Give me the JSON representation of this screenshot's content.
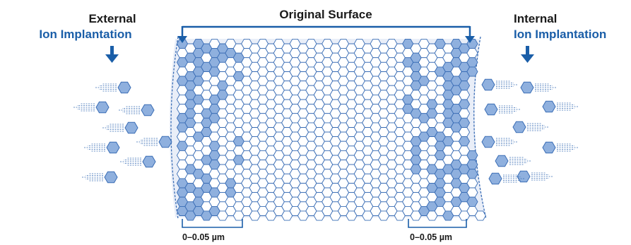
{
  "labels": {
    "top": "Original Surface",
    "left_line1": "External",
    "left_line2": "Ion Implantation",
    "right_line1": "Internal",
    "right_line2": "Ion Implantation",
    "depth_left": "0–0.05 µm",
    "depth_right": "0–0.05 µm"
  },
  "colors": {
    "accent_blue": "#1a5ea8",
    "ion_fill": "#8fb0de",
    "ion_stroke": "#3a6db5",
    "lattice_stroke": "#3a6db5",
    "lattice_bg": "#e9eef8",
    "text_dark": "#1a1a1a"
  },
  "icons": {
    "arrow": "down-arrow-icon",
    "ion": "hexagon-ion-icon"
  }
}
